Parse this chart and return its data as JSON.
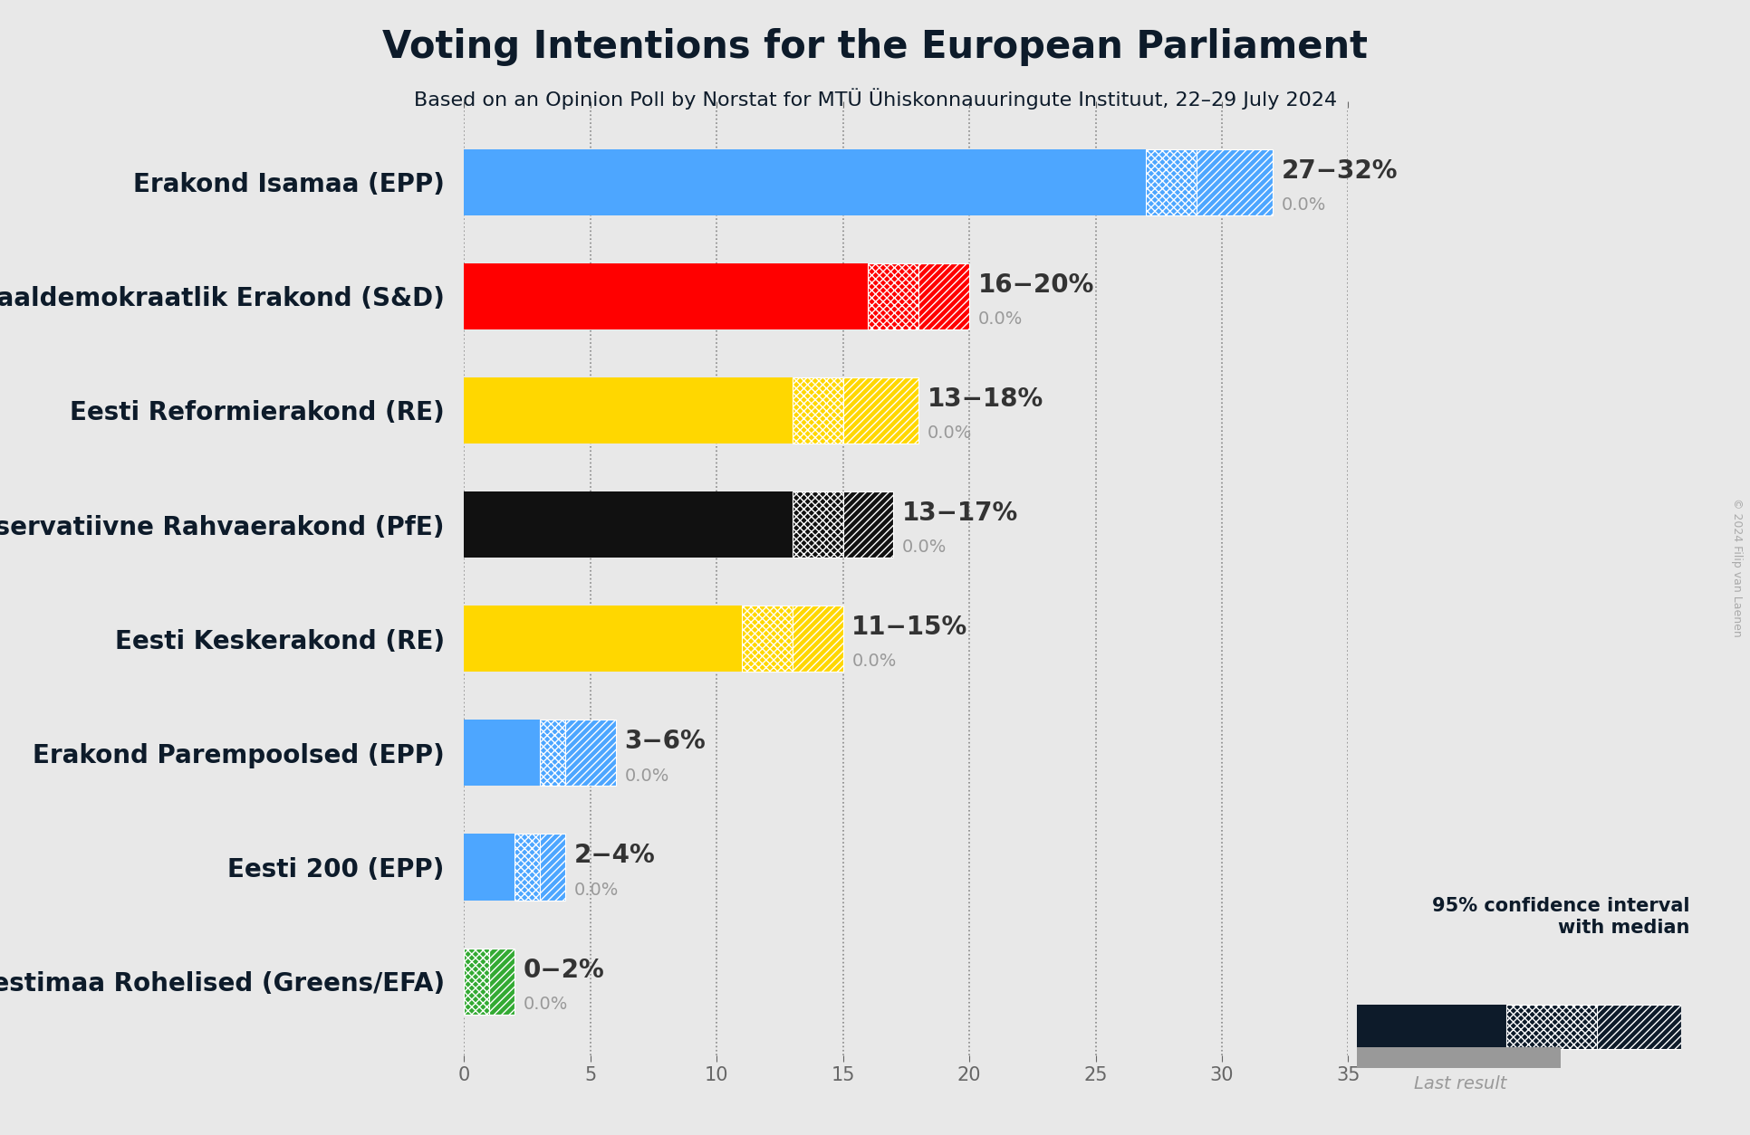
{
  "title": "Voting Intentions for the European Parliament",
  "subtitle": "Based on an Opinion Poll by Norstat for MTÜ Ühiskonnauuringute Instituut, 22–29 July 2024",
  "copyright": "© 2024 Filip van Laenen",
  "parties": [
    {
      "name": "Erakond Isamaa (EPP)",
      "low": 27,
      "median": 29,
      "high": 32,
      "last": 0.0,
      "color": "#4da6ff"
    },
    {
      "name": "Sotsiaaldemokraatlik Erakond (S&D)",
      "low": 16,
      "median": 18,
      "high": 20,
      "last": 0.0,
      "color": "#ff0000"
    },
    {
      "name": "Eesti Reformierakond (RE)",
      "low": 13,
      "median": 15,
      "high": 18,
      "last": 0.0,
      "color": "#FFD700"
    },
    {
      "name": "Eesti Konservatiivne Rahvaerakond (PfE)",
      "low": 13,
      "median": 15,
      "high": 17,
      "last": 0.0,
      "color": "#111111"
    },
    {
      "name": "Eesti Keskerakond (RE)",
      "low": 11,
      "median": 13,
      "high": 15,
      "last": 0.0,
      "color": "#FFD700"
    },
    {
      "name": "Erakond Parempoolsed (EPP)",
      "low": 3,
      "median": 4,
      "high": 6,
      "last": 0.0,
      "color": "#4da6ff"
    },
    {
      "name": "Eesti 200 (EPP)",
      "low": 2,
      "median": 3,
      "high": 4,
      "last": 0.0,
      "color": "#4da6ff"
    },
    {
      "name": "Erakond Eestimaa Rohelised (Greens/EFA)",
      "low": 0,
      "median": 1,
      "high": 2,
      "last": 0.0,
      "color": "#33aa33"
    }
  ],
  "labels": [
    "27−32%",
    "16−20%",
    "13−18%",
    "13−17%",
    "11−15%",
    "3−6%",
    "2−4%",
    "0−2%"
  ],
  "xlim": [
    0,
    35
  ],
  "xtick_labels": [
    "0",
    "5",
    "10",
    "15",
    "20",
    "25",
    "30",
    "35"
  ],
  "xticks": [
    0,
    5,
    10,
    15,
    20,
    25,
    30,
    35
  ],
  "background_color": "#e8e8e8",
  "bar_height": 0.58,
  "dark_color": "#0d1b2a",
  "gray_color": "#999999",
  "label_color": "#333333",
  "last_label_color": "#999999",
  "title_fontsize": 30,
  "subtitle_fontsize": 16,
  "party_fontsize": 20,
  "label_fontsize": 20
}
